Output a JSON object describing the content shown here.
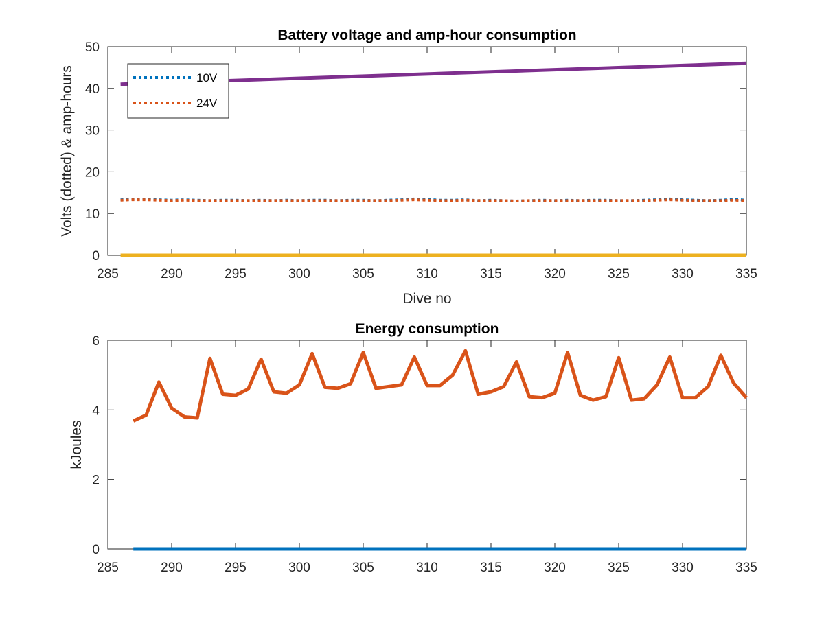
{
  "chart_data": [
    {
      "type": "line",
      "title": "Battery voltage and amp-hour consumption",
      "xlabel": "Dive no",
      "ylabel": "Volts (dotted) & amp-hours",
      "xlim": [
        285,
        335
      ],
      "ylim": [
        0,
        50
      ],
      "xticks": [
        "285",
        "290",
        "295",
        "300",
        "305",
        "310",
        "315",
        "320",
        "325",
        "330",
        "335"
      ],
      "yticks": [
        "0",
        "10",
        "20",
        "30",
        "40",
        "50"
      ],
      "legend_position": "top-left",
      "grid": false,
      "series": [
        {
          "name": "10V",
          "style": "dotted",
          "color": "#0072BD",
          "x": [
            286,
            287,
            288,
            289,
            290,
            291,
            292,
            293,
            294,
            295,
            296,
            297,
            298,
            299,
            300,
            301,
            302,
            303,
            304,
            305,
            306,
            307,
            308,
            309,
            310,
            311,
            312,
            313,
            314,
            315,
            316,
            317,
            318,
            319,
            320,
            321,
            322,
            323,
            324,
            325,
            326,
            327,
            328,
            329,
            330,
            331,
            332,
            333,
            334,
            335
          ],
          "values": [
            13.3,
            13.4,
            13.5,
            13.3,
            13.2,
            13.3,
            13.2,
            13.1,
            13.2,
            13.2,
            13.1,
            13.2,
            13.1,
            13.2,
            13.1,
            13.2,
            13.2,
            13.1,
            13.2,
            13.2,
            13.1,
            13.2,
            13.3,
            13.5,
            13.4,
            13.2,
            13.2,
            13.3,
            13.1,
            13.2,
            13.1,
            13.0,
            13.1,
            13.2,
            13.1,
            13.2,
            13.1,
            13.2,
            13.2,
            13.1,
            13.1,
            13.2,
            13.3,
            13.5,
            13.3,
            13.2,
            13.1,
            13.2,
            13.4,
            13.2
          ]
        },
        {
          "name": "24V",
          "style": "dotted",
          "color": "#D95319",
          "x": [
            286,
            287,
            288,
            289,
            290,
            291,
            292,
            293,
            294,
            295,
            296,
            297,
            298,
            299,
            300,
            301,
            302,
            303,
            304,
            305,
            306,
            307,
            308,
            309,
            310,
            311,
            312,
            313,
            314,
            315,
            316,
            317,
            318,
            319,
            320,
            321,
            322,
            323,
            324,
            325,
            326,
            327,
            328,
            329,
            330,
            331,
            332,
            333,
            334,
            335
          ],
          "values": [
            13.2,
            13.3,
            13.3,
            13.2,
            13.1,
            13.2,
            13.1,
            13.1,
            13.1,
            13.1,
            13.1,
            13.1,
            13.1,
            13.1,
            13.1,
            13.1,
            13.1,
            13.1,
            13.1,
            13.1,
            13.1,
            13.1,
            13.2,
            13.3,
            13.2,
            13.1,
            13.1,
            13.2,
            13.1,
            13.1,
            13.1,
            13.0,
            13.1,
            13.1,
            13.1,
            13.1,
            13.1,
            13.1,
            13.1,
            13.1,
            13.1,
            13.1,
            13.2,
            13.3,
            13.2,
            13.1,
            13.1,
            13.1,
            13.2,
            13.1
          ]
        },
        {
          "style": "solid",
          "color": "#7E2F8E",
          "x": [
            286,
            335
          ],
          "values": [
            41.0,
            46.0
          ]
        },
        {
          "style": "solid",
          "color": "#EDB120",
          "x": [
            286,
            335
          ],
          "values": [
            0,
            0
          ]
        }
      ]
    },
    {
      "type": "line",
      "title": "Energy consumption",
      "xlabel": "",
      "ylabel": "kJoules",
      "xlim": [
        285,
        335
      ],
      "ylim": [
        0,
        6
      ],
      "xticks": [
        "285",
        "290",
        "295",
        "300",
        "305",
        "310",
        "315",
        "320",
        "325",
        "330",
        "335"
      ],
      "yticks": [
        "0",
        "2",
        "4",
        "6"
      ],
      "grid": false,
      "series": [
        {
          "style": "solid",
          "color": "#D95319",
          "x": [
            287,
            288,
            289,
            290,
            291,
            292,
            293,
            294,
            295,
            296,
            297,
            298,
            299,
            300,
            301,
            302,
            303,
            304,
            305,
            306,
            307,
            308,
            309,
            310,
            311,
            312,
            313,
            314,
            315,
            316,
            317,
            318,
            319,
            320,
            321,
            322,
            323,
            324,
            325,
            326,
            327,
            328,
            329,
            330,
            331,
            332,
            333,
            334,
            335
          ],
          "values": [
            3.68,
            3.85,
            4.8,
            4.05,
            3.8,
            3.77,
            5.48,
            4.45,
            4.42,
            4.6,
            5.46,
            4.52,
            4.48,
            4.72,
            5.62,
            4.65,
            4.62,
            4.75,
            5.65,
            4.62,
            4.67,
            4.72,
            5.52,
            4.7,
            4.7,
            5.0,
            5.7,
            4.45,
            4.52,
            4.67,
            5.38,
            4.38,
            4.35,
            4.48,
            5.65,
            4.42,
            4.28,
            4.38,
            5.5,
            4.28,
            4.32,
            4.72,
            5.52,
            4.35,
            4.35,
            4.67,
            5.57,
            4.77,
            4.35
          ]
        },
        {
          "style": "solid",
          "color": "#0072BD",
          "x": [
            287,
            335
          ],
          "values": [
            0,
            0
          ]
        }
      ]
    }
  ]
}
